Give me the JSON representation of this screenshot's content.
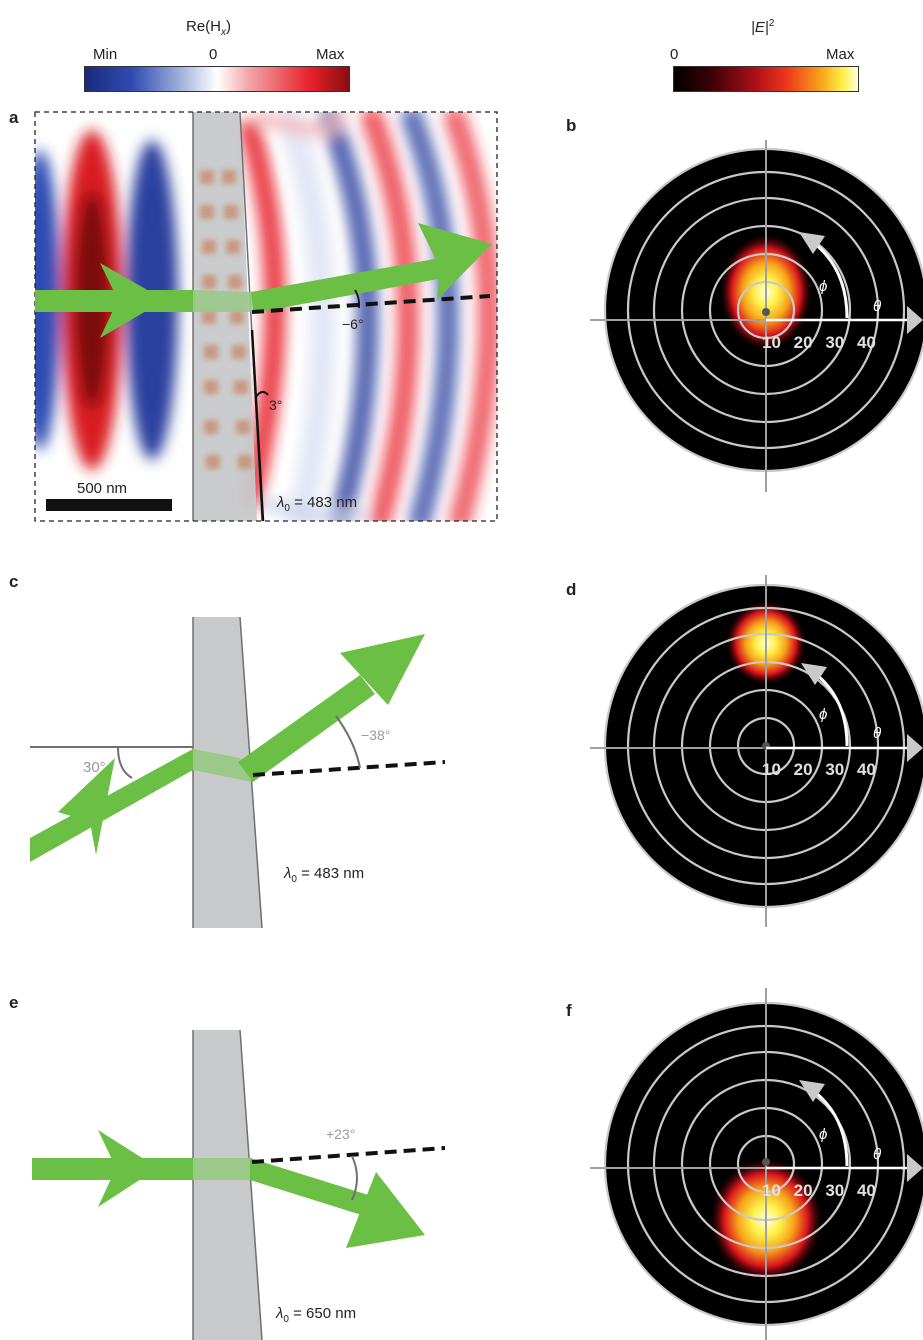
{
  "colorbars": {
    "left": {
      "title": "Re(H",
      "title_sub": "x",
      "title_close": ")",
      "min_label": "Min",
      "mid_label": "0",
      "max_label": "Max"
    },
    "right": {
      "title": "|E|",
      "title_sup": "2",
      "min_label": "0",
      "max_label": "Max"
    }
  },
  "panels": {
    "a": {
      "label": "a",
      "scale_bar": "500 nm",
      "angle_out": "−6°",
      "tilt": "3°",
      "lambda_prefix": "λ",
      "lambda_sub": "0",
      "lambda_rest": " = 483 nm"
    },
    "b": {
      "label": "b",
      "phi": "ϕ",
      "theta": "θ",
      "rings": [
        "10",
        "20",
        "30",
        "40"
      ]
    },
    "c": {
      "label": "c",
      "angle_in": "30°",
      "angle_out": "−38°",
      "lambda_prefix": "λ",
      "lambda_sub": "0",
      "lambda_rest": " = 483 nm"
    },
    "d": {
      "label": "d",
      "phi": "ϕ",
      "theta": "θ",
      "rings": [
        "10",
        "20",
        "30",
        "40"
      ]
    },
    "e": {
      "label": "e",
      "angle_out": "+23°",
      "lambda_prefix": "λ",
      "lambda_sub": "0",
      "lambda_rest": " = 650 nm"
    },
    "f": {
      "label": "f",
      "phi": "ϕ",
      "theta": "θ",
      "rings": [
        "10",
        "20",
        "30",
        "40"
      ]
    }
  },
  "colors": {
    "beam": "#6bbf45",
    "slab": "#c8c9cb",
    "red": "#e8222c",
    "blue": "#2a3f9f",
    "ring": "#c9c9c9"
  }
}
